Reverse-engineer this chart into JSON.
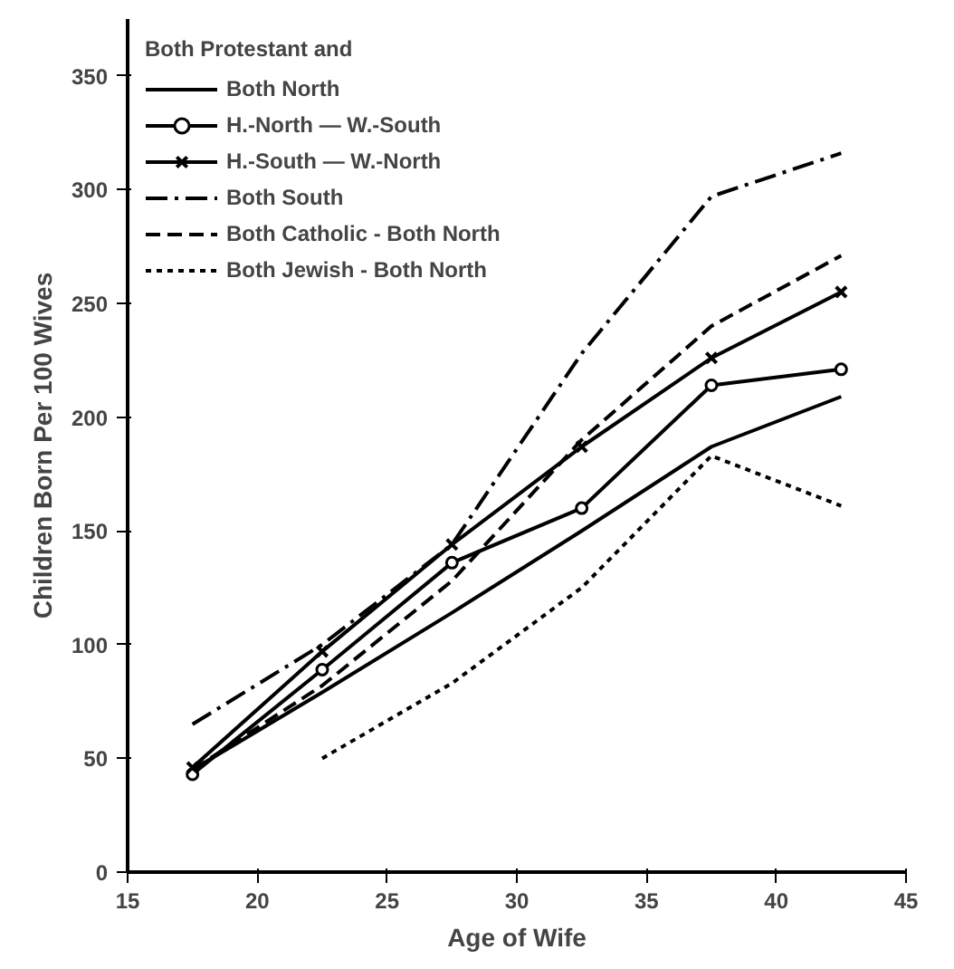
{
  "chart_data": {
    "type": "line",
    "xlabel": "Age of Wife",
    "ylabel": "Children Born Per 100 Wives",
    "legend_title": "Both Protestant and",
    "x": [
      17.5,
      22.5,
      27.5,
      32.5,
      37.5,
      42.5
    ],
    "series": [
      {
        "name": "Both North",
        "color": "#000000",
        "marker": "none",
        "line_style": "solid",
        "values": [
          45,
          79,
          114,
          150,
          187,
          209
        ]
      },
      {
        "name": "H.-North — W.-South",
        "color": "#000000",
        "marker": "circle",
        "line_style": "solid",
        "values": [
          43,
          89,
          136,
          160,
          214,
          221
        ]
      },
      {
        "name": "H.-South — W.-North",
        "color": "#000000",
        "marker": "cross",
        "line_style": "solid",
        "values": [
          46,
          97,
          144,
          187,
          226,
          255
        ]
      },
      {
        "name": "Both South",
        "color": "#000000",
        "marker": "none",
        "line_style": "dashdot",
        "values": [
          65,
          100,
          144,
          228,
          297,
          316
        ]
      },
      {
        "name": "Both Catholic - Both North",
        "color": "#000000",
        "marker": "none",
        "line_style": "dashed",
        "values": [
          45,
          82,
          128,
          190,
          240,
          271
        ]
      },
      {
        "name": "Both Jewish - Both North",
        "color": "#000000",
        "marker": "none",
        "line_style": "dotted",
        "values": [
          null,
          50,
          83,
          125,
          183,
          161
        ]
      }
    ],
    "xlim": [
      15,
      45
    ],
    "xticks": [
      15,
      20,
      25,
      30,
      35,
      40,
      45
    ],
    "ylim": [
      0,
      375
    ],
    "yticks": [
      0,
      50,
      100,
      150,
      200,
      250,
      300,
      350
    ],
    "grid": false,
    "legend": "top left"
  }
}
